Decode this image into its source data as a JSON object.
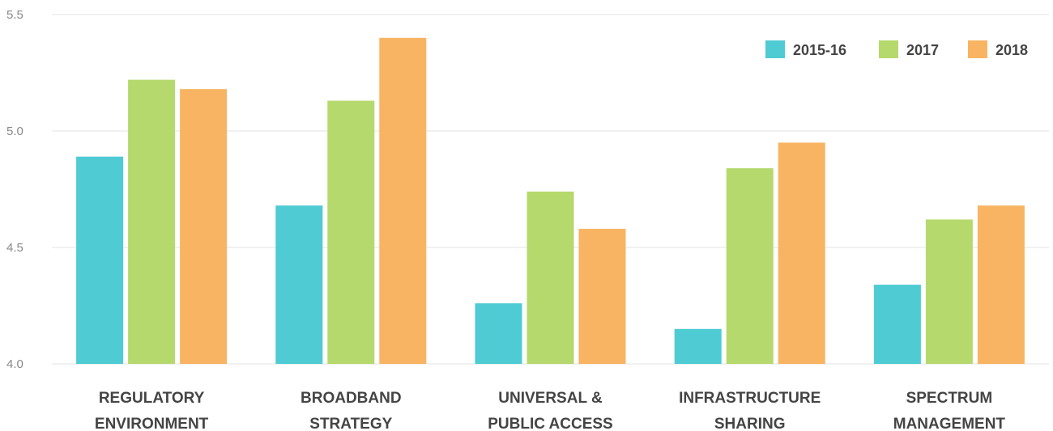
{
  "chart_data": {
    "type": "bar",
    "title": "",
    "xlabel": "",
    "ylabel": "",
    "ylim": [
      4.0,
      5.5
    ],
    "yticks": [
      {
        "value": 4.0,
        "label": "4.0"
      },
      {
        "value": 4.5,
        "label": "4.5"
      },
      {
        "value": 5.0,
        "label": "5.0"
      },
      {
        "value": 5.5,
        "label": "5.5"
      }
    ],
    "grid": true,
    "legend_position": "top-right",
    "categories": [
      [
        "REGULATORY",
        "ENVIRONMENT"
      ],
      [
        "BROADBAND",
        "STRATEGY"
      ],
      [
        "UNIVERSAL &",
        "PUBLIC ACCESS"
      ],
      [
        "INFRASTRUCTURE",
        "SHARING"
      ],
      [
        "SPECTRUM",
        "MANAGEMENT"
      ]
    ],
    "series": [
      {
        "name": "2015-16",
        "color": "#4ecbd3",
        "values": [
          4.89,
          4.68,
          4.26,
          4.15,
          4.34
        ]
      },
      {
        "name": "2017",
        "color": "#b5d96d",
        "values": [
          5.22,
          5.13,
          4.74,
          4.84,
          4.62
        ]
      },
      {
        "name": "2018",
        "color": "#f8b462",
        "values": [
          5.18,
          5.4,
          4.58,
          4.95,
          4.68
        ]
      }
    ]
  }
}
